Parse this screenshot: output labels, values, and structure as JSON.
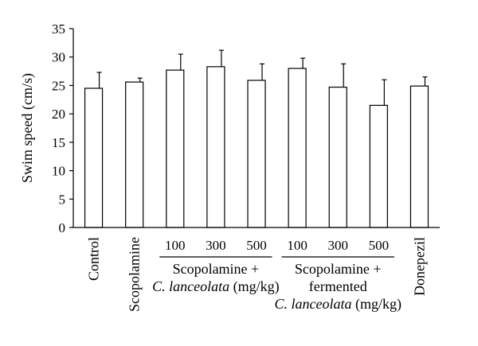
{
  "chart_data": {
    "type": "bar",
    "ylabel": "Swim speed (cm/s)",
    "ylim": [
      0,
      35
    ],
    "yticks": [
      "0",
      "5",
      "10",
      "15",
      "20",
      "25",
      "30",
      "35"
    ],
    "grid": false,
    "legend": false,
    "bar_color": "#ffffff",
    "bar_stroke": "#000000",
    "categories": [
      {
        "label": "Control"
      },
      {
        "label": "Scopolamine"
      },
      {
        "label": "100"
      },
      {
        "label": "300"
      },
      {
        "label": "500"
      },
      {
        "label": "100"
      },
      {
        "label": "300"
      },
      {
        "label": "500"
      },
      {
        "label": "Donepezil"
      }
    ],
    "values": [
      24.5,
      25.6,
      27.7,
      28.3,
      25.9,
      28.0,
      24.7,
      21.5,
      24.9
    ],
    "errors": [
      2.8,
      0.7,
      2.8,
      2.9,
      2.9,
      1.8,
      4.1,
      4.5,
      1.6
    ],
    "groups": [
      {
        "lines": [
          {
            "segments": [
              {
                "text": "Scopolamine +",
                "italic": false
              }
            ]
          },
          {
            "segments": [
              {
                "text": "C. lanceolata",
                "italic": true
              },
              {
                "text": " (mg/kg)",
                "italic": false
              }
            ]
          }
        ]
      },
      {
        "lines": [
          {
            "segments": [
              {
                "text": "Scopolamine +",
                "italic": false
              }
            ]
          },
          {
            "segments": [
              {
                "text": "fermented",
                "italic": false
              }
            ]
          },
          {
            "segments": [
              {
                "text": "C. lanceolata",
                "italic": true
              },
              {
                "text": " (mg/kg)",
                "italic": false
              }
            ]
          }
        ]
      }
    ]
  }
}
